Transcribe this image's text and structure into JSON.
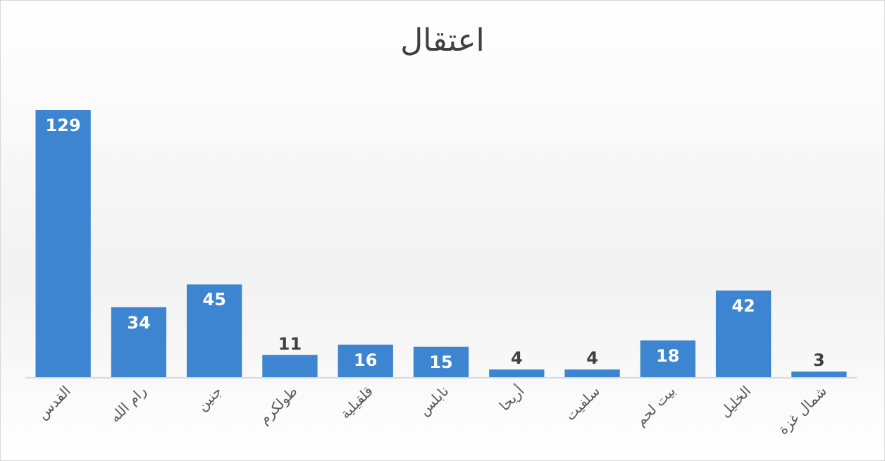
{
  "chart_data": {
    "type": "bar",
    "title": "اعتقال",
    "categories": [
      "القدس",
      "رام الله",
      "جنين",
      "طولكرم",
      "قلقيلية",
      "نابلس",
      "أريحا",
      "سلفيت",
      "بيت لحم",
      "الخليل",
      "شمال غزة"
    ],
    "values": [
      129,
      34,
      45,
      11,
      16,
      15,
      4,
      4,
      18,
      42,
      3
    ],
    "color": "#3d85d0",
    "data_labels": true
  }
}
